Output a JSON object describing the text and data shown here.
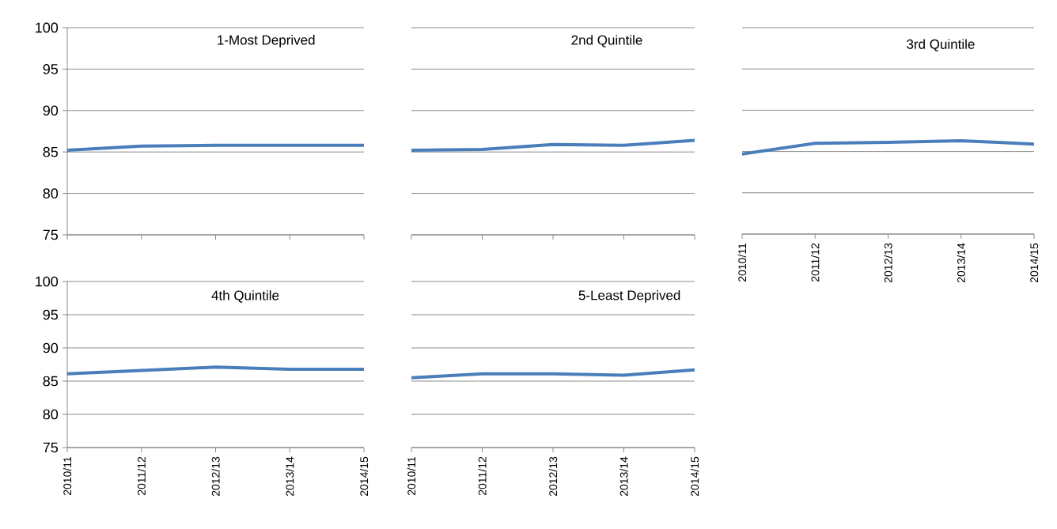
{
  "chart_data": [
    {
      "type": "line",
      "title": "1-Most Deprived",
      "categories": [
        "2010/11",
        "2011/12",
        "2012/13",
        "2013/14",
        "2014/15"
      ],
      "values": [
        85.2,
        85.7,
        85.8,
        85.8,
        85.8
      ],
      "color": "#4a7ebb",
      "ylim": [
        75,
        100
      ],
      "yticks": [
        75,
        80,
        85,
        90,
        95,
        100
      ],
      "grid": "y",
      "tick_labels": "y"
    },
    {
      "type": "line",
      "title": "2nd Quintile",
      "categories": [
        "2010/11",
        "2011/12",
        "2012/13",
        "2013/14",
        "2014/15"
      ],
      "values": [
        85.2,
        85.3,
        85.9,
        85.8,
        86.4
      ],
      "color": "#4a7ebb",
      "ylim": [
        75,
        100
      ],
      "yticks": [
        75,
        80,
        85,
        90,
        95,
        100
      ],
      "grid": "y",
      "tick_labels": false
    },
    {
      "type": "line",
      "title": "3rd Quintile",
      "categories": [
        "2010/11",
        "2011/12",
        "2012/13",
        "2013/14",
        "2014/15"
      ],
      "values": [
        84.7,
        86.0,
        86.1,
        86.3,
        85.9
      ],
      "color": "#4a7ebb",
      "ylim": [
        75,
        100
      ],
      "yticks": [
        75,
        80,
        85,
        90,
        95,
        100
      ],
      "grid": "y",
      "tick_labels": "x"
    },
    {
      "type": "line",
      "title": "4th Quintile",
      "categories": [
        "2010/11",
        "2011/12",
        "2012/13",
        "2013/14",
        "2014/15"
      ],
      "values": [
        86.1,
        86.6,
        87.1,
        86.8,
        86.8
      ],
      "color": "#4a7ebb",
      "ylim": [
        75,
        100
      ],
      "yticks": [
        75,
        80,
        85,
        90,
        95,
        100
      ],
      "grid": "y"
    },
    {
      "type": "line",
      "title": "5-Least Deprived",
      "categories": [
        "2010/11",
        "2011/12",
        "2012/13",
        "2013/14",
        "2014/15"
      ],
      "values": [
        85.5,
        86.1,
        86.1,
        85.9,
        86.7
      ],
      "color": "#4a7ebb",
      "ylim": [
        75,
        100
      ],
      "yticks": [
        75,
        80,
        85,
        90,
        95,
        100
      ],
      "grid": "y",
      "tick_labels": "x"
    }
  ]
}
